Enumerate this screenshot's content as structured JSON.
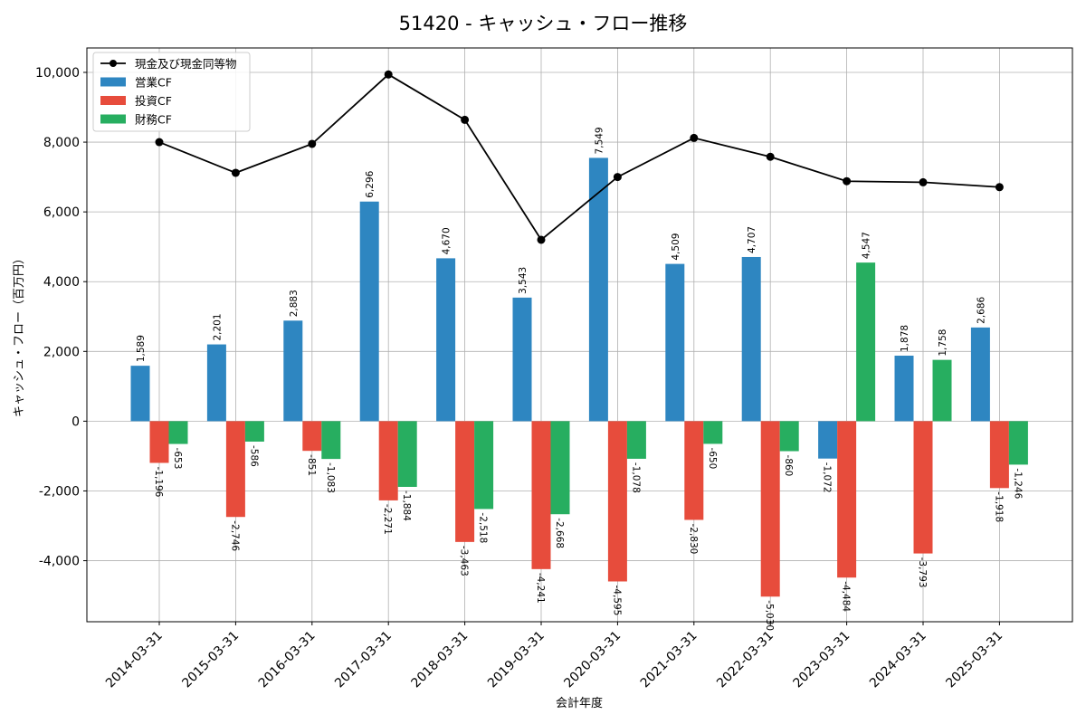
{
  "chart_data": {
    "type": "bar",
    "title": "51420 - キャッシュ・フロー推移",
    "xlabel": "会計年度",
    "ylabel": "キャッシュ・フロー（百万円）",
    "ylim": [
      -5750,
      10700
    ],
    "yticks": [
      -4000,
      -2000,
      0,
      2000,
      4000,
      6000,
      8000,
      10000
    ],
    "ytick_labels": [
      "-4,000",
      "-2,000",
      "0",
      "2,000",
      "4,000",
      "6,000",
      "8,000",
      "10,000"
    ],
    "grid": true,
    "legend_position": "top-left",
    "categories": [
      "2014-03-31",
      "2015-03-31",
      "2016-03-31",
      "2017-03-31",
      "2018-03-31",
      "2019-03-31",
      "2020-03-31",
      "2021-03-31",
      "2022-03-31",
      "2023-03-31",
      "2024-03-31",
      "2025-03-31"
    ],
    "series": [
      {
        "name": "営業CF",
        "kind": "bar",
        "color": "#2e86c1",
        "values": [
          1589,
          2201,
          2883,
          6296,
          4670,
          3543,
          7549,
          4509,
          4707,
          -1072,
          1878,
          2686
        ],
        "labels": [
          "1,589",
          "2,201",
          "2,883",
          "6,296",
          "4,670",
          "3,543",
          "7,549",
          "4,509",
          "4,707",
          "-1,072",
          "1,878",
          "2,686"
        ]
      },
      {
        "name": "投資CF",
        "kind": "bar",
        "color": "#e74c3c",
        "values": [
          -1196,
          -2746,
          -851,
          -2271,
          -3463,
          -4241,
          -4595,
          -2830,
          -5030,
          -4484,
          -3793,
          -1918
        ],
        "labels": [
          "-1,196",
          "-2,746",
          "-851",
          "-2,271",
          "-3,463",
          "-4,241",
          "-4,595",
          "-2,830",
          "-5,030",
          "-4,484",
          "-3,793",
          "-1,918"
        ]
      },
      {
        "name": "財務CF",
        "kind": "bar",
        "color": "#27ae60",
        "values": [
          -653,
          -586,
          -1083,
          -1884,
          -2518,
          -2668,
          -1078,
          -650,
          -860,
          4547,
          1758,
          -1246
        ],
        "labels": [
          "-653",
          "-586",
          "-1,083",
          "-1,884",
          "-2,518",
          "-2,668",
          "-1,078",
          "-650",
          "-860",
          "4,547",
          "1,758",
          "-1,246"
        ]
      },
      {
        "name": "現金及び現金同等物",
        "kind": "line",
        "color": "#000000",
        "values": [
          8000,
          7120,
          7950,
          9940,
          8640,
          5200,
          7000,
          8120,
          7580,
          6880,
          6850,
          6710
        ]
      }
    ]
  }
}
